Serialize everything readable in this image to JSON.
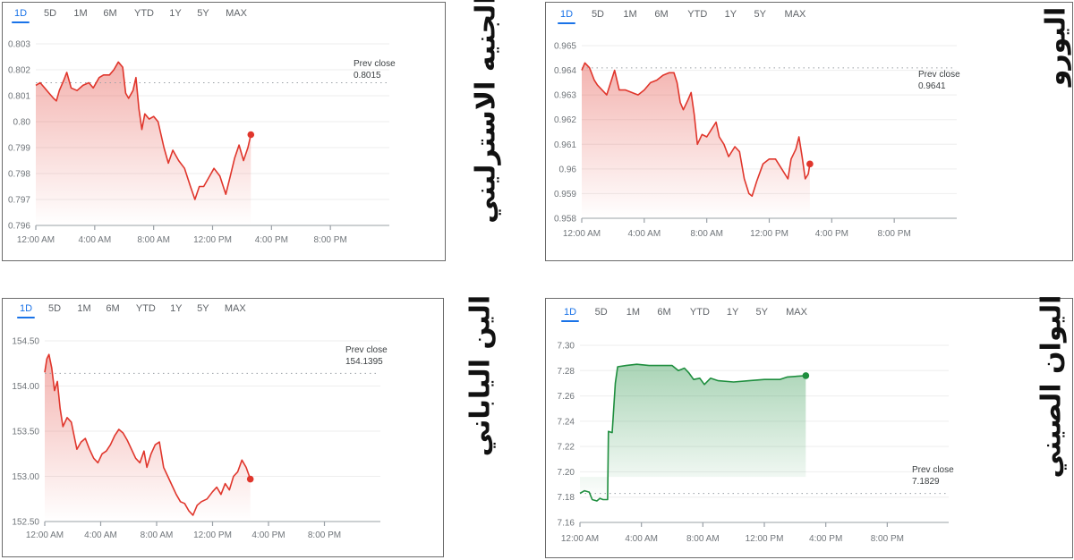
{
  "tabs": [
    "1D",
    "5D",
    "1M",
    "6M",
    "YTD",
    "1Y",
    "5Y",
    "MAX"
  ],
  "selected_tab": "1D",
  "chart_data": [
    {
      "type": "line",
      "title": "الجنيه الاسترليني",
      "prev_close_label": "Prev close",
      "prev_close": 0.8015,
      "prev_close_text": "0.8015",
      "color": "#e0362c",
      "ylim": [
        0.796,
        0.803
      ],
      "y_ticks": [
        "0.803",
        "0.802",
        "0.801",
        "0.80",
        "0.799",
        "0.798",
        "0.797",
        "0.796"
      ],
      "y_tick_values": [
        0.803,
        0.802,
        0.801,
        0.8,
        0.799,
        0.798,
        0.797,
        0.796
      ],
      "xlim_hours": [
        0,
        24
      ],
      "x_ticks": [
        "12:00 AM",
        "4:00 AM",
        "8:00 AM",
        "12:00 PM",
        "4:00 PM",
        "8:00 PM"
      ],
      "x_tick_hours": [
        0,
        4,
        8,
        12,
        16,
        20
      ],
      "points": [
        [
          0,
          0.8014
        ],
        [
          0.3,
          0.8015
        ],
        [
          0.6,
          0.8013
        ],
        [
          0.9,
          0.8011
        ],
        [
          1.2,
          0.8009
        ],
        [
          1.4,
          0.8008
        ],
        [
          1.6,
          0.8012
        ],
        [
          1.9,
          0.8016
        ],
        [
          2.1,
          0.8019
        ],
        [
          2.4,
          0.8013
        ],
        [
          2.8,
          0.8012
        ],
        [
          3.2,
          0.8014
        ],
        [
          3.6,
          0.8015
        ],
        [
          3.9,
          0.8013
        ],
        [
          4.3,
          0.8017
        ],
        [
          4.6,
          0.8018
        ],
        [
          5.0,
          0.8018
        ],
        [
          5.3,
          0.802
        ],
        [
          5.6,
          0.8023
        ],
        [
          5.9,
          0.8021
        ],
        [
          6.1,
          0.8011
        ],
        [
          6.3,
          0.8009
        ],
        [
          6.6,
          0.8012
        ],
        [
          6.8,
          0.8017
        ],
        [
          7.0,
          0.8005
        ],
        [
          7.2,
          0.7997
        ],
        [
          7.4,
          0.8003
        ],
        [
          7.7,
          0.8001
        ],
        [
          8.0,
          0.8002
        ],
        [
          8.3,
          0.8
        ],
        [
          8.7,
          0.799
        ],
        [
          9.0,
          0.7984
        ],
        [
          9.3,
          0.7989
        ],
        [
          9.7,
          0.7985
        ],
        [
          10.1,
          0.7982
        ],
        [
          10.5,
          0.7975
        ],
        [
          10.8,
          0.797
        ],
        [
          11.1,
          0.7975
        ],
        [
          11.4,
          0.7975
        ],
        [
          11.8,
          0.7979
        ],
        [
          12.1,
          0.7982
        ],
        [
          12.5,
          0.7979
        ],
        [
          12.9,
          0.7972
        ],
        [
          13.2,
          0.7979
        ],
        [
          13.5,
          0.7986
        ],
        [
          13.8,
          0.7991
        ],
        [
          14.1,
          0.7985
        ],
        [
          14.4,
          0.799
        ],
        [
          14.6,
          0.7995
        ]
      ]
    },
    {
      "type": "line",
      "title": "اليورو",
      "prev_close_label": "Prev close",
      "prev_close": 0.9641,
      "prev_close_text": "0.9641",
      "color": "#e0362c",
      "ylim": [
        0.958,
        0.965
      ],
      "y_ticks": [
        "0.965",
        "0.964",
        "0.963",
        "0.962",
        "0.961",
        "0.96",
        "0.959",
        "0.958"
      ],
      "y_tick_values": [
        0.965,
        0.964,
        0.963,
        0.962,
        0.961,
        0.96,
        0.959,
        0.958
      ],
      "xlim_hours": [
        0,
        24
      ],
      "x_ticks": [
        "12:00 AM",
        "4:00 AM",
        "8:00 AM",
        "12:00 PM",
        "4:00 PM",
        "8:00 PM"
      ],
      "x_tick_hours": [
        0,
        4,
        8,
        12,
        16,
        20
      ],
      "points": [
        [
          0,
          0.964
        ],
        [
          0.2,
          0.9643
        ],
        [
          0.5,
          0.9641
        ],
        [
          0.8,
          0.9636
        ],
        [
          1.0,
          0.9634
        ],
        [
          1.3,
          0.9632
        ],
        [
          1.6,
          0.963
        ],
        [
          1.9,
          0.9636
        ],
        [
          2.1,
          0.964
        ],
        [
          2.4,
          0.9632
        ],
        [
          2.8,
          0.9632
        ],
        [
          3.2,
          0.9631
        ],
        [
          3.6,
          0.963
        ],
        [
          4.0,
          0.9632
        ],
        [
          4.4,
          0.9635
        ],
        [
          4.8,
          0.9636
        ],
        [
          5.2,
          0.9638
        ],
        [
          5.6,
          0.9639
        ],
        [
          5.9,
          0.9639
        ],
        [
          6.1,
          0.9635
        ],
        [
          6.3,
          0.9627
        ],
        [
          6.5,
          0.9624
        ],
        [
          6.8,
          0.9628
        ],
        [
          7.0,
          0.9631
        ],
        [
          7.2,
          0.9622
        ],
        [
          7.4,
          0.961
        ],
        [
          7.7,
          0.9614
        ],
        [
          8.0,
          0.9613
        ],
        [
          8.3,
          0.9616
        ],
        [
          8.6,
          0.9619
        ],
        [
          8.8,
          0.9613
        ],
        [
          9.1,
          0.961
        ],
        [
          9.4,
          0.9605
        ],
        [
          9.8,
          0.9609
        ],
        [
          10.1,
          0.9607
        ],
        [
          10.4,
          0.9596
        ],
        [
          10.7,
          0.959
        ],
        [
          10.9,
          0.9589
        ],
        [
          11.2,
          0.9595
        ],
        [
          11.6,
          0.9602
        ],
        [
          12.0,
          0.9604
        ],
        [
          12.4,
          0.9604
        ],
        [
          12.8,
          0.96
        ],
        [
          13.2,
          0.9596
        ],
        [
          13.4,
          0.9604
        ],
        [
          13.7,
          0.9608
        ],
        [
          13.9,
          0.9613
        ],
        [
          14.1,
          0.9605
        ],
        [
          14.3,
          0.9596
        ],
        [
          14.5,
          0.9598
        ],
        [
          14.6,
          0.9602
        ]
      ]
    },
    {
      "type": "line",
      "title": "الين الياباني",
      "prev_close_label": "Prev close",
      "prev_close": 154.1395,
      "prev_close_text": "154.1395",
      "color": "#e0362c",
      "ylim": [
        152.5,
        154.5
      ],
      "y_ticks": [
        "154.50",
        "154.00",
        "153.50",
        "153.00",
        "152.50"
      ],
      "y_tick_values": [
        154.5,
        154.0,
        153.5,
        153.0,
        152.5
      ],
      "xlim_hours": [
        0,
        24
      ],
      "x_ticks": [
        "12:00 AM",
        "4:00 AM",
        "8:00 AM",
        "12:00 PM",
        "4:00 PM",
        "8:00 PM"
      ],
      "x_tick_hours": [
        0,
        4,
        8,
        12,
        16,
        20
      ],
      "points": [
        [
          0,
          154.15
        ],
        [
          0.15,
          154.3
        ],
        [
          0.3,
          154.35
        ],
        [
          0.5,
          154.2
        ],
        [
          0.7,
          153.95
        ],
        [
          0.9,
          154.05
        ],
        [
          1.1,
          153.75
        ],
        [
          1.3,
          153.55
        ],
        [
          1.6,
          153.65
        ],
        [
          1.9,
          153.6
        ],
        [
          2.1,
          153.45
        ],
        [
          2.3,
          153.3
        ],
        [
          2.6,
          153.38
        ],
        [
          2.9,
          153.42
        ],
        [
          3.2,
          153.3
        ],
        [
          3.5,
          153.2
        ],
        [
          3.8,
          153.15
        ],
        [
          4.1,
          153.25
        ],
        [
          4.4,
          153.28
        ],
        [
          4.7,
          153.35
        ],
        [
          5.0,
          153.45
        ],
        [
          5.3,
          153.52
        ],
        [
          5.6,
          153.48
        ],
        [
          5.9,
          153.4
        ],
        [
          6.2,
          153.3
        ],
        [
          6.5,
          153.2
        ],
        [
          6.8,
          153.15
        ],
        [
          7.1,
          153.28
        ],
        [
          7.3,
          153.1
        ],
        [
          7.6,
          153.25
        ],
        [
          7.9,
          153.35
        ],
        [
          8.2,
          153.38
        ],
        [
          8.5,
          153.1
        ],
        [
          8.8,
          153.0
        ],
        [
          9.1,
          152.9
        ],
        [
          9.4,
          152.8
        ],
        [
          9.7,
          152.72
        ],
        [
          10.0,
          152.7
        ],
        [
          10.3,
          152.62
        ],
        [
          10.6,
          152.57
        ],
        [
          10.9,
          152.68
        ],
        [
          11.2,
          152.72
        ],
        [
          11.6,
          152.75
        ],
        [
          12.0,
          152.83
        ],
        [
          12.3,
          152.88
        ],
        [
          12.6,
          152.8
        ],
        [
          12.9,
          152.92
        ],
        [
          13.2,
          152.85
        ],
        [
          13.5,
          153.0
        ],
        [
          13.8,
          153.05
        ],
        [
          14.1,
          153.18
        ],
        [
          14.4,
          153.1
        ],
        [
          14.7,
          152.97
        ]
      ]
    },
    {
      "type": "line",
      "title": "اليوان الصيني",
      "prev_close_label": "Prev close",
      "prev_close": 7.1829,
      "prev_close_text": "7.1829",
      "color": "#1e8e3e",
      "ylim": [
        7.16,
        7.3
      ],
      "y_ticks": [
        "7.30",
        "7.28",
        "7.26",
        "7.24",
        "7.22",
        "7.20",
        "7.18",
        "7.16"
      ],
      "y_tick_values": [
        7.3,
        7.28,
        7.26,
        7.24,
        7.22,
        7.2,
        7.18,
        7.16
      ],
      "xlim_hours": [
        0,
        24
      ],
      "x_ticks": [
        "12:00 AM",
        "4:00 AM",
        "8:00 AM",
        "12:00 PM",
        "4:00 PM",
        "8:00 PM"
      ],
      "x_tick_hours": [
        0,
        4,
        8,
        12,
        16,
        20
      ],
      "points": [
        [
          0,
          7.183
        ],
        [
          0.3,
          7.185
        ],
        [
          0.6,
          7.184
        ],
        [
          0.8,
          7.178
        ],
        [
          1.1,
          7.177
        ],
        [
          1.3,
          7.179
        ],
        [
          1.5,
          7.178
        ],
        [
          1.8,
          7.178
        ],
        [
          1.85,
          7.232
        ],
        [
          2.1,
          7.231
        ],
        [
          2.3,
          7.27
        ],
        [
          2.45,
          7.283
        ],
        [
          3.0,
          7.284
        ],
        [
          3.7,
          7.285
        ],
        [
          4.5,
          7.284
        ],
        [
          5.5,
          7.284
        ],
        [
          6.0,
          7.284
        ],
        [
          6.4,
          7.28
        ],
        [
          6.8,
          7.282
        ],
        [
          7.1,
          7.278
        ],
        [
          7.4,
          7.273
        ],
        [
          7.8,
          7.274
        ],
        [
          8.1,
          7.269
        ],
        [
          8.5,
          7.274
        ],
        [
          9.0,
          7.272
        ],
        [
          10.0,
          7.271
        ],
        [
          11.0,
          7.272
        ],
        [
          12.0,
          7.273
        ],
        [
          13.0,
          7.273
        ],
        [
          13.5,
          7.275
        ],
        [
          14.7,
          7.276
        ]
      ]
    }
  ]
}
